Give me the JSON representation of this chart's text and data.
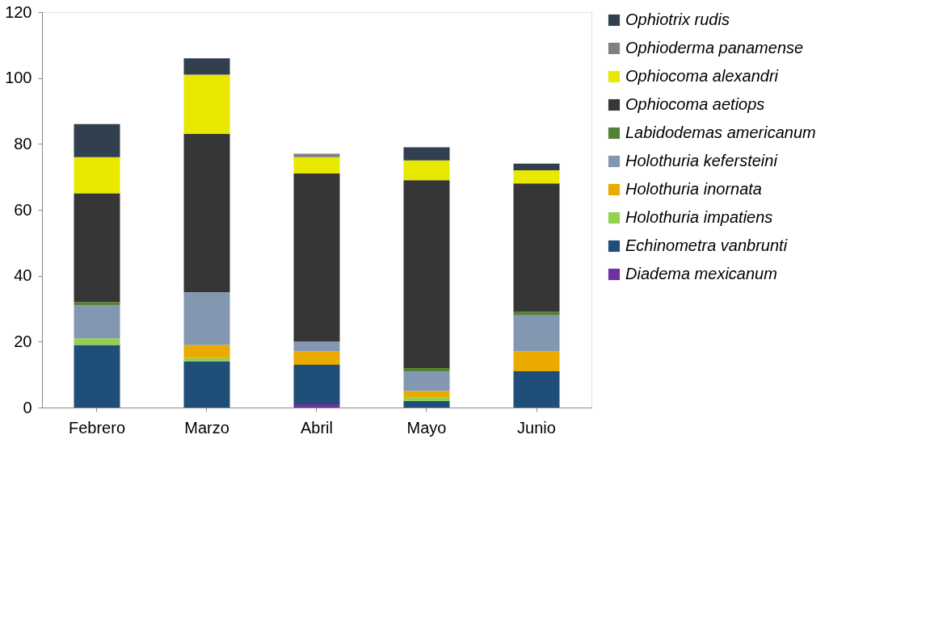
{
  "chart_data": {
    "type": "bar",
    "stacked": true,
    "categories": [
      "Febrero",
      "Marzo",
      "Abril",
      "Mayo",
      "Junio"
    ],
    "ylim": [
      0,
      120
    ],
    "yticks": [
      0,
      20,
      40,
      60,
      80,
      100,
      120
    ],
    "grid": false,
    "legend": "right",
    "series": [
      {
        "name": "Diadema mexicanum",
        "color": "#7030a0",
        "values": [
          0,
          0,
          1,
          0,
          0
        ]
      },
      {
        "name": "Echinometra vanbrunti",
        "color": "#1f4e79",
        "values": [
          19,
          14,
          12,
          2,
          11
        ]
      },
      {
        "name": "Holothuria impatiens",
        "color": "#92d050",
        "values": [
          2,
          1,
          0,
          1,
          0
        ]
      },
      {
        "name": "Holothuria inornata",
        "color": "#eaaa00",
        "values": [
          0,
          4,
          4,
          2,
          6
        ]
      },
      {
        "name": "Holothuria kefersteini",
        "color": "#8497b0",
        "values": [
          10,
          16,
          3,
          6,
          11
        ]
      },
      {
        "name": "Labidodemas americanum",
        "color": "#548235",
        "values": [
          1,
          0,
          0,
          1,
          1
        ]
      },
      {
        "name": "Ophiocoma aetiops",
        "color": "#363636",
        "values": [
          33,
          48,
          51,
          57,
          39
        ]
      },
      {
        "name": "Ophiocoma alexandri",
        "color": "#e8e800",
        "values": [
          11,
          18,
          5,
          6,
          4
        ]
      },
      {
        "name": "Ophioderma panamense",
        "color": "#808080",
        "values": [
          0,
          0,
          1,
          0,
          0
        ]
      },
      {
        "name": "Ophiotrix rudis",
        "color": "#323f4f",
        "values": [
          10,
          5,
          0,
          4,
          2
        ]
      }
    ]
  }
}
